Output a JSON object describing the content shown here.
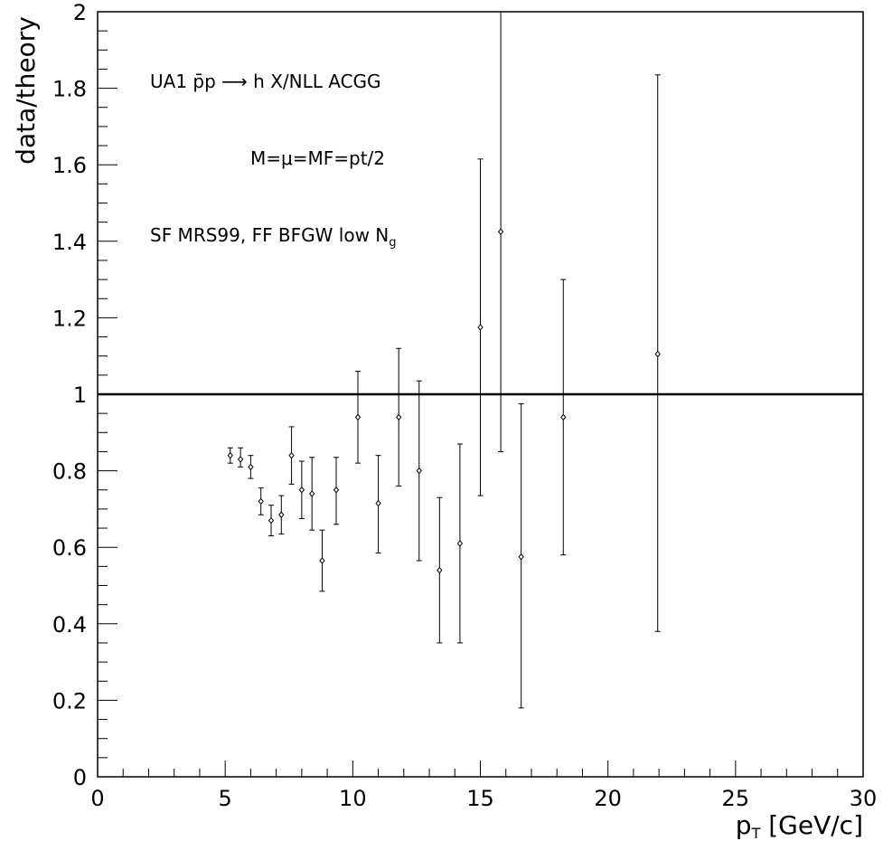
{
  "chart_data": {
    "type": "scatter",
    "xlabel": "p_T [GeV/c]",
    "xlabel_main": "p",
    "xlabel_sub": "T",
    "xlabel_rest": " [GeV/c]",
    "ylabel": "data/theory",
    "xlim": [
      0,
      30
    ],
    "ylim": [
      0,
      2
    ],
    "x_major_ticks": [
      0,
      5,
      10,
      15,
      20,
      25,
      30
    ],
    "y_major_ticks": [
      0,
      0.2,
      0.4,
      0.6,
      0.8,
      1,
      1.2,
      1.4,
      1.6,
      1.8,
      2
    ],
    "x_tick_labels": [
      "0",
      "5",
      "10",
      "15",
      "20",
      "25",
      "30"
    ],
    "y_tick_labels": [
      "0",
      "0.2",
      "0.4",
      "0.6",
      "0.8",
      "1",
      "1.2",
      "1.4",
      "1.6",
      "1.8",
      "2"
    ],
    "reference_line": 1,
    "grid": false,
    "annotations": [
      {
        "text": "UA1  p̄p ⟶ h X/NLL ACGG"
      },
      {
        "text": "M=μ=MF=pt/2"
      },
      {
        "text": "SF MRS99, FF BFGW low N",
        "subscript": "g"
      }
    ],
    "points": [
      {
        "x": 5.2,
        "y": 0.84,
        "err_low": 0.02,
        "err_high": 0.02
      },
      {
        "x": 5.6,
        "y": 0.83,
        "err_low": 0.02,
        "err_high": 0.03
      },
      {
        "x": 6.0,
        "y": 0.81,
        "err_low": 0.03,
        "err_high": 0.03
      },
      {
        "x": 6.4,
        "y": 0.72,
        "err_low": 0.035,
        "err_high": 0.035
      },
      {
        "x": 6.8,
        "y": 0.67,
        "err_low": 0.04,
        "err_high": 0.04
      },
      {
        "x": 7.2,
        "y": 0.685,
        "err_low": 0.05,
        "err_high": 0.05
      },
      {
        "x": 7.6,
        "y": 0.84,
        "err_low": 0.075,
        "err_high": 0.075
      },
      {
        "x": 8.0,
        "y": 0.75,
        "err_low": 0.075,
        "err_high": 0.075
      },
      {
        "x": 8.4,
        "y": 0.74,
        "err_low": 0.095,
        "err_high": 0.095
      },
      {
        "x": 8.8,
        "y": 0.565,
        "err_low": 0.08,
        "err_high": 0.08
      },
      {
        "x": 9.35,
        "y": 0.75,
        "err_low": 0.09,
        "err_high": 0.085
      },
      {
        "x": 10.2,
        "y": 0.94,
        "err_low": 0.12,
        "err_high": 0.12
      },
      {
        "x": 11.0,
        "y": 0.715,
        "err_low": 0.13,
        "err_high": 0.125
      },
      {
        "x": 11.8,
        "y": 0.94,
        "err_low": 0.18,
        "err_high": 0.18
      },
      {
        "x": 12.6,
        "y": 0.8,
        "err_low": 0.235,
        "err_high": 0.235
      },
      {
        "x": 13.4,
        "y": 0.54,
        "err_low": 0.19,
        "err_high": 0.19
      },
      {
        "x": 14.2,
        "y": 0.61,
        "err_low": 0.26,
        "err_high": 0.26
      },
      {
        "x": 15.0,
        "y": 1.175,
        "err_low": 0.44,
        "err_high": 0.44
      },
      {
        "x": 15.8,
        "y": 1.425,
        "err_low": 0.575,
        "err_high": 0.575
      },
      {
        "x": 16.6,
        "y": 0.575,
        "err_low": 0.395,
        "err_high": 0.4
      },
      {
        "x": 18.25,
        "y": 0.94,
        "err_low": 0.36,
        "err_high": 0.36
      },
      {
        "x": 21.95,
        "y": 1.105,
        "err_low": 0.725,
        "err_high": 0.73
      }
    ]
  }
}
